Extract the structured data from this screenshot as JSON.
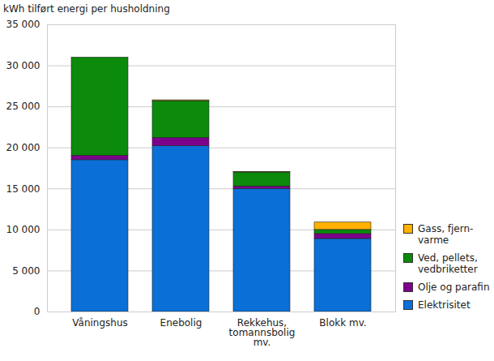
{
  "chart_data": {
    "type": "bar",
    "stacked": true,
    "grid": true,
    "legend": "right",
    "title": "kWh tilført energi per husholdning",
    "categories": [
      "Våningshus",
      "Enebolig",
      "Rekkehus, tomannsbolig mv.",
      "Blokk mv."
    ],
    "series": [
      {
        "name": "Elektrisitet",
        "color": "#0a6fd6",
        "values": [
          18500,
          20200,
          15000,
          8900
        ]
      },
      {
        "name": "Olje og parafin",
        "color": "#7d008c",
        "values": [
          550,
          1000,
          300,
          600
        ]
      },
      {
        "name": "Ved, pellets, vedbriketter",
        "color": "#0b8a0b",
        "values": [
          11950,
          4500,
          1700,
          500
        ]
      },
      {
        "name": "Gass, fjern-varme",
        "color": "#ffb000",
        "values": [
          0,
          100,
          50,
          900
        ]
      }
    ],
    "ylim": [
      0,
      35000
    ],
    "yticks": [
      0,
      {
        "value": 5000,
        "label": "5 000"
      },
      {
        "value": 10000,
        "label": "10 000"
      },
      {
        "value": 15000,
        "label": "15 000"
      },
      {
        "value": 20000,
        "label": "20 000"
      },
      {
        "value": 25000,
        "label": "25 000"
      },
      {
        "value": 30000,
        "label": "30 000"
      },
      {
        "value": 35000,
        "label": "35 000"
      }
    ]
  }
}
